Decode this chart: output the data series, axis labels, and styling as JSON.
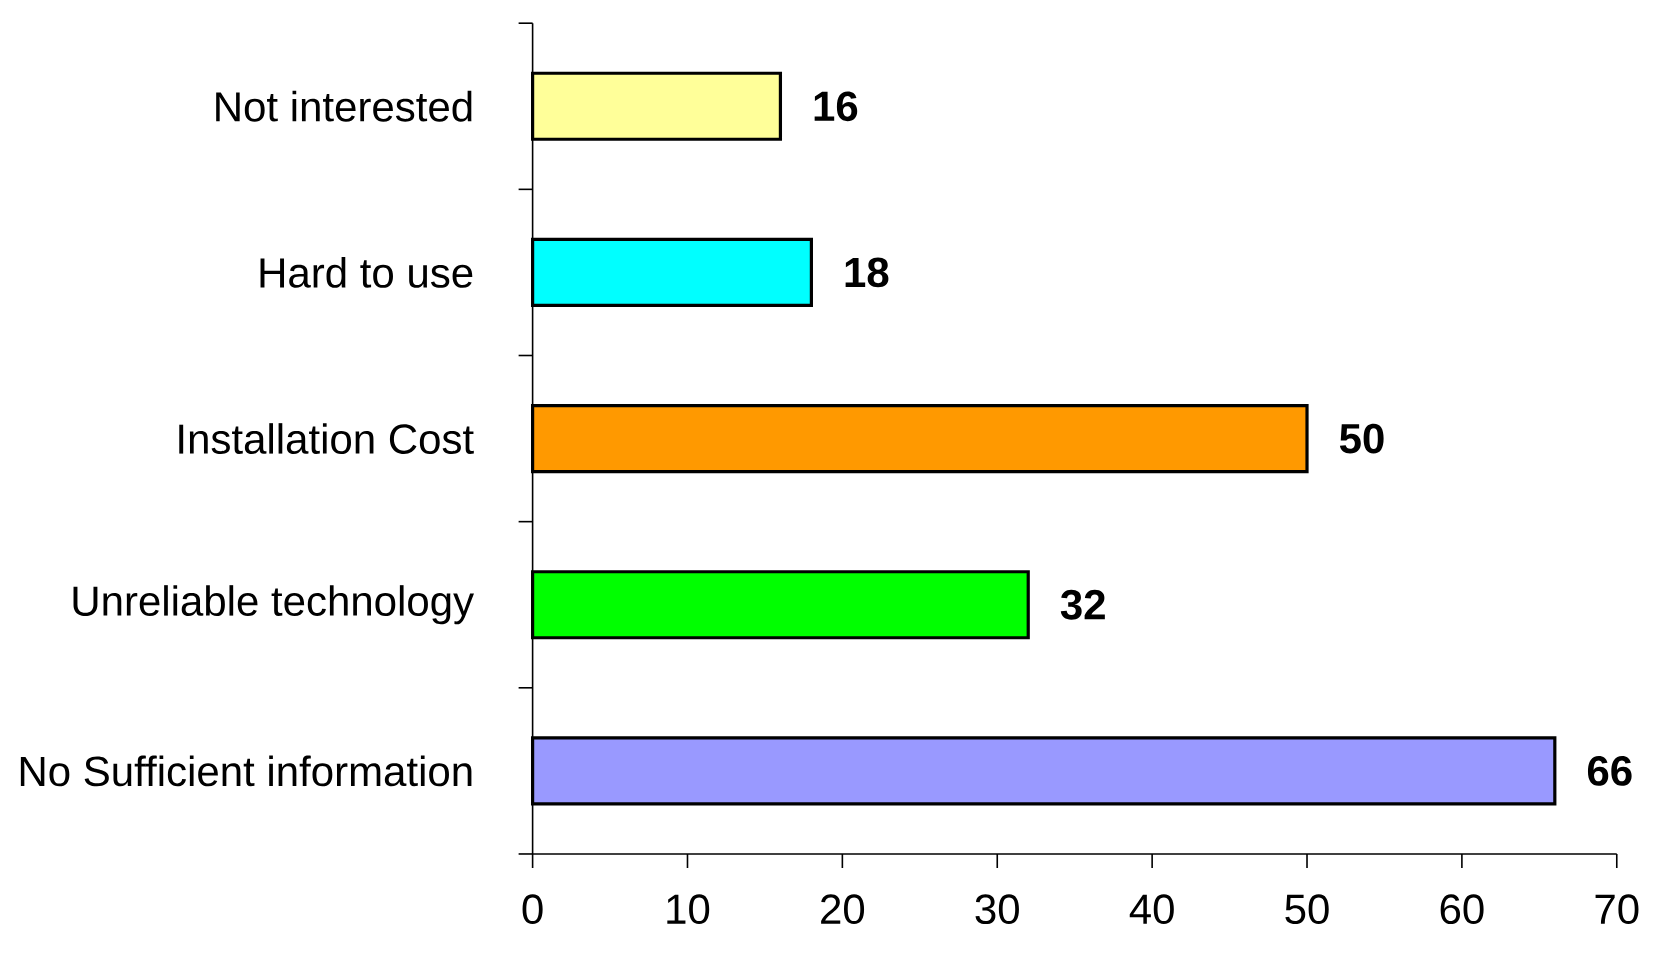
{
  "chart_data": {
    "type": "bar",
    "orientation": "horizontal",
    "categories": [
      "Not interested",
      "Hard to use",
      "Installation Cost",
      "Unreliable technology",
      "No Sufficient information"
    ],
    "values": [
      16,
      18,
      50,
      32,
      66
    ],
    "colors": [
      "#ffff99",
      "#00ffff",
      "#ff9900",
      "#00ff00",
      "#9999ff"
    ],
    "xlim": [
      0,
      70
    ],
    "xticks": [
      0,
      10,
      20,
      30,
      40,
      50,
      60,
      70
    ],
    "data_labels": true
  }
}
